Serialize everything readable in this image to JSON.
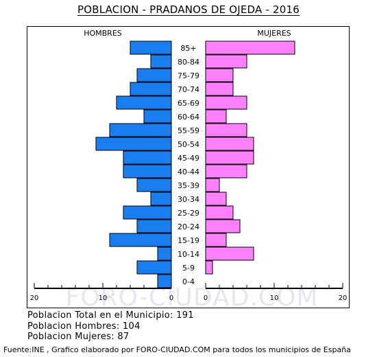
{
  "title": "POBLACION - PRADANOS DE OJEDA - 2016",
  "watermark": "FORO-CIUDAD.COM",
  "summary": {
    "total": "Poblacion Total en el Municipio: 191",
    "men": "Poblacion Hombres: 104",
    "women": "Poblacion Mujeres: 87"
  },
  "footer": "Fuente:INE , Grafico elaborado por FORO-CIUDAD.COM para todos los municipios de España",
  "chart_data": {
    "type": "bar",
    "orientation": "horizontal-pyramid",
    "legend": {
      "left": "HOMBRES",
      "right": "MUJERES"
    },
    "categories": [
      "85+",
      "80-84",
      "75-79",
      "70-74",
      "65-69",
      "60-64",
      "55-59",
      "50-54",
      "45-49",
      "40-44",
      "35-39",
      "30-34",
      "25-29",
      "20-24",
      "15-19",
      "10-14",
      "5-9",
      "0-4"
    ],
    "series": [
      {
        "name": "HOMBRES",
        "color": "#1a7ef0",
        "values": [
          6,
          3,
          5,
          6,
          8,
          4,
          9,
          11,
          7,
          7,
          5,
          3,
          7,
          5,
          9,
          2,
          5,
          2
        ]
      },
      {
        "name": "MUJERES",
        "color": "#ff80ff",
        "values": [
          13,
          6,
          4,
          4,
          6,
          3,
          6,
          7,
          7,
          6,
          2,
          3,
          4,
          5,
          3,
          7,
          1,
          0
        ]
      }
    ],
    "x_ticks_left": [
      "20",
      "10",
      "0"
    ],
    "x_ticks_right": [
      "0",
      "10",
      "20"
    ],
    "xlim": [
      0,
      20
    ]
  }
}
